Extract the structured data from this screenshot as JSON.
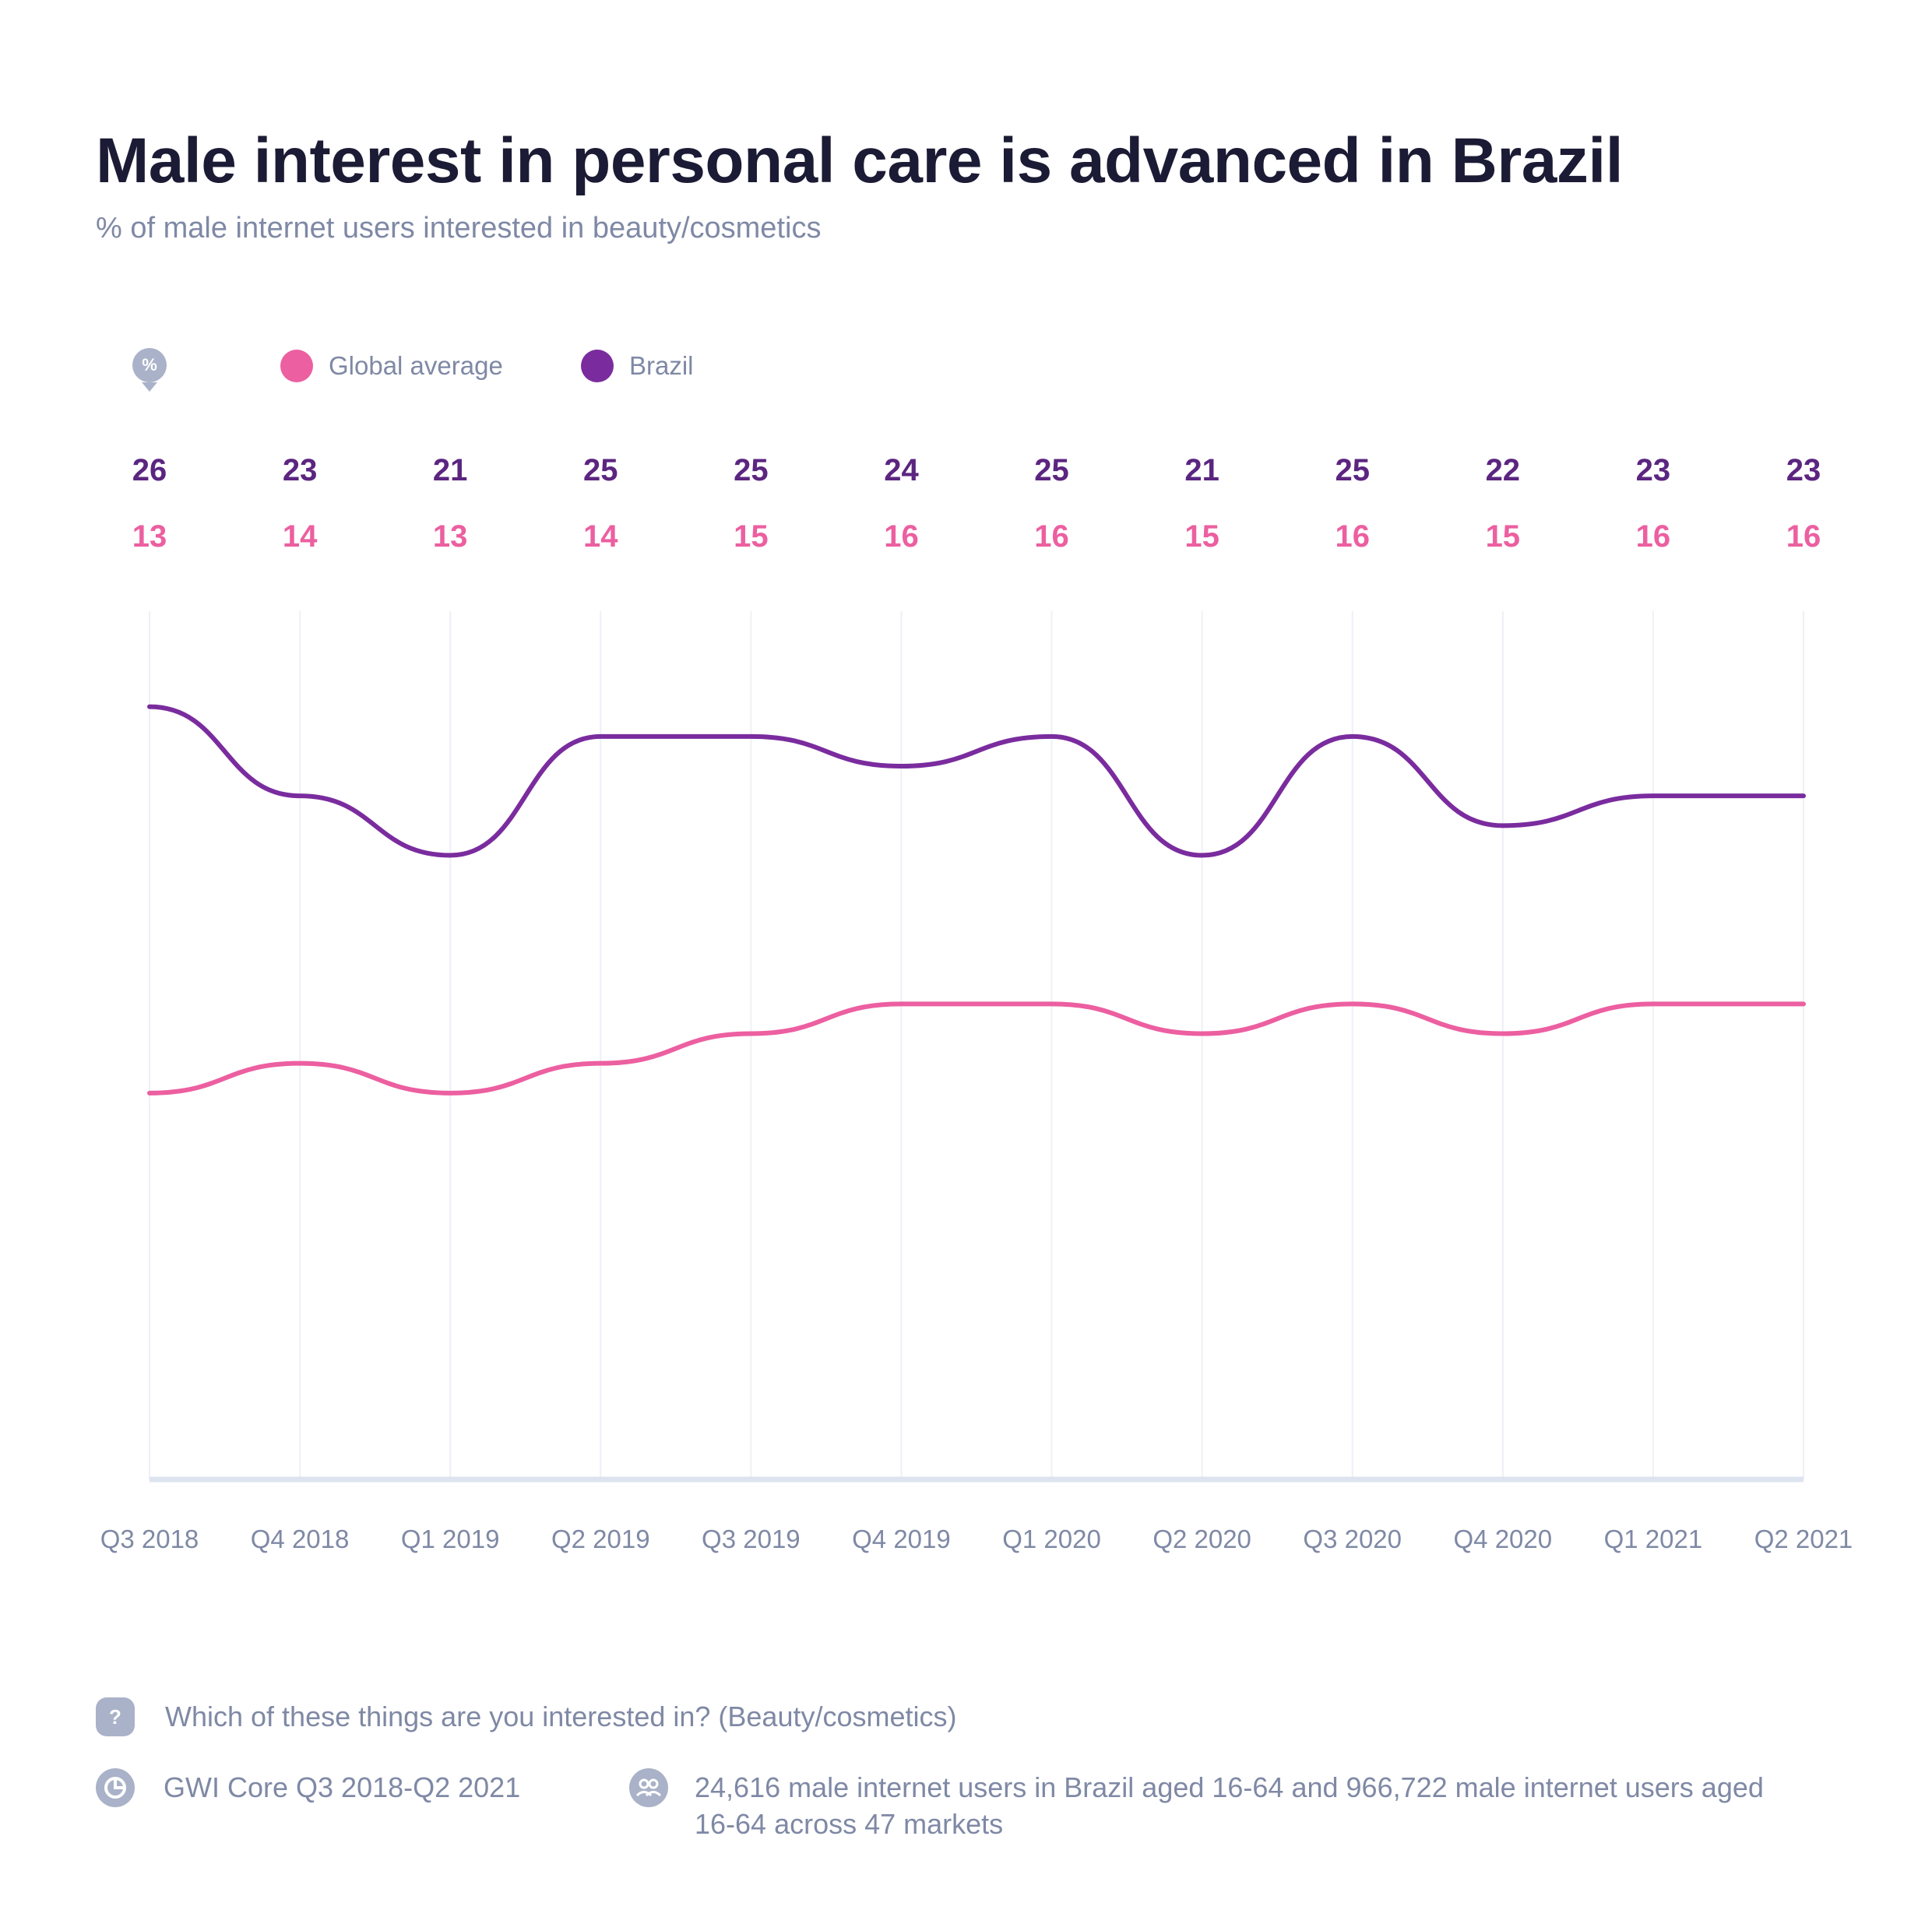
{
  "header": {
    "title": "Male interest in personal care is advanced in Brazil",
    "subtitle": "% of male internet users interested in beauty/cosmetics"
  },
  "legend": {
    "unit_icon": "%",
    "items": [
      {
        "label": "Global average",
        "color": "#ec5fa0"
      },
      {
        "label": "Brazil",
        "color": "#7a2c9e"
      }
    ]
  },
  "chart_data": {
    "type": "line",
    "categories": [
      "Q3 2018",
      "Q4 2018",
      "Q1 2019",
      "Q2 2019",
      "Q3 2019",
      "Q4 2019",
      "Q1 2020",
      "Q2 2020",
      "Q3 2020",
      "Q4 2020",
      "Q1 2021",
      "Q2 2021"
    ],
    "series": [
      {
        "name": "Brazil",
        "color": "#7a2c9e",
        "label_color": "#5b2580",
        "values": [
          26,
          23,
          21,
          25,
          25,
          24,
          25,
          21,
          25,
          22,
          23,
          23
        ]
      },
      {
        "name": "Global average",
        "color": "#ec5fa0",
        "label_color": "#ec5fa0",
        "values": [
          13,
          14,
          13,
          14,
          15,
          16,
          16,
          15,
          16,
          15,
          16,
          16
        ]
      }
    ],
    "ylim": [
      0,
      30
    ],
    "grid": "vertical",
    "legend_position": "top-left"
  },
  "footer": {
    "question_icon": "?",
    "question": "Which of these things are you interested in? (Beauty/cosmetics)",
    "source": "GWI Core Q3 2018-Q2 2021",
    "sample": "24,616 male internet users in Brazil aged 16-64 and 966,722 male internet users aged 16-64 across 47 markets"
  }
}
